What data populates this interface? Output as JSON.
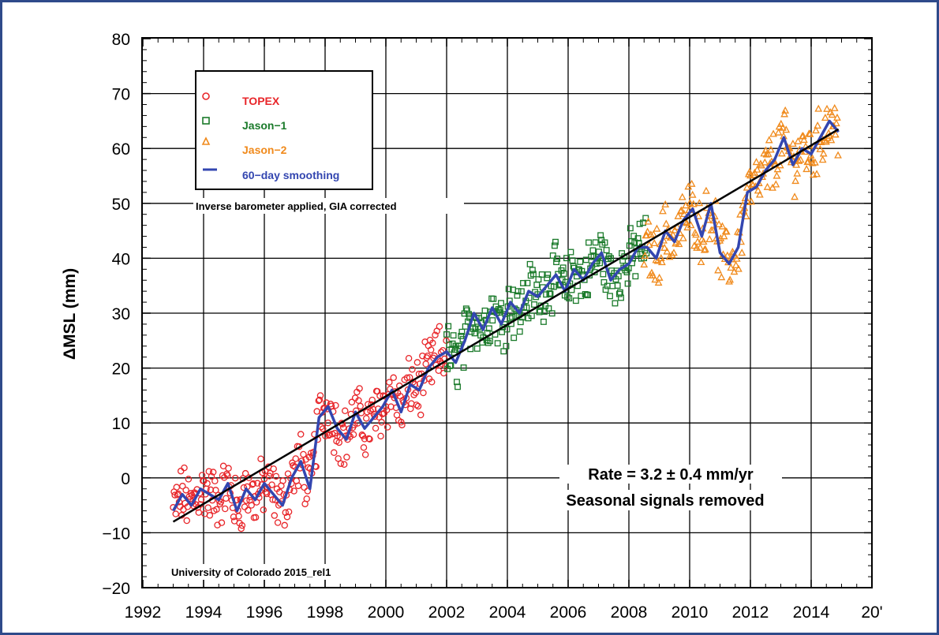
{
  "chart_data": {
    "type": "scatter",
    "ylabel": "ΔMSL (mm)",
    "xlabel": "",
    "xlim": [
      1992,
      2016
    ],
    "ylim": [
      -20,
      80
    ],
    "x_ticks": [
      "1992",
      "1994",
      "1996",
      "1998",
      "2000",
      "2002",
      "2004",
      "2006",
      "2008",
      "2010",
      "2012",
      "2014",
      "20'"
    ],
    "y_ticks": [
      "80",
      "70",
      "60",
      "50",
      "40",
      "30",
      "20",
      "10",
      "0",
      "−10",
      "−20"
    ],
    "grid": true,
    "legend_position": "top-left",
    "series": [
      {
        "name": "TOPEX",
        "marker": "circle",
        "color": "#e8262a",
        "x_range": [
          1993.0,
          2002.0
        ],
        "approx_trend": {
          "start": -7,
          "end": 24
        }
      },
      {
        "name": "Jason−1",
        "marker": "square",
        "color": "#1a7a2a",
        "x_range": [
          2002.0,
          2008.6
        ],
        "approx_trend": {
          "start": 24,
          "end": 43
        }
      },
      {
        "name": "Jason−2",
        "marker": "triangle",
        "color": "#f08a1c",
        "x_range": [
          2008.5,
          2014.9
        ],
        "approx_trend": {
          "start": 43,
          "end": 64
        }
      },
      {
        "name": "60−day smoothing",
        "marker": "line",
        "color": "#3346b0",
        "x": [
          1993.0,
          1993.3,
          1993.6,
          1993.9,
          1994.2,
          1994.5,
          1994.8,
          1995.1,
          1995.4,
          1995.7,
          1996.0,
          1996.3,
          1996.6,
          1996.9,
          1997.2,
          1997.5,
          1997.8,
          1998.1,
          1998.4,
          1998.7,
          1999.0,
          1999.3,
          1999.6,
          1999.9,
          2000.2,
          2000.5,
          2000.8,
          2001.1,
          2001.4,
          2001.7,
          2002.0,
          2002.3,
          2002.6,
          2002.9,
          2003.2,
          2003.5,
          2003.8,
          2004.1,
          2004.4,
          2004.7,
          2005.0,
          2005.3,
          2005.6,
          2005.9,
          2006.2,
          2006.5,
          2006.8,
          2007.1,
          2007.4,
          2007.7,
          2008.0,
          2008.3,
          2008.6,
          2008.9,
          2009.2,
          2009.5,
          2009.8,
          2010.1,
          2010.4,
          2010.7,
          2011.0,
          2011.3,
          2011.6,
          2011.9,
          2012.2,
          2012.5,
          2012.8,
          2013.1,
          2013.4,
          2013.7,
          2014.0,
          2014.3,
          2014.6,
          2014.9
        ],
        "y": [
          -6,
          -3,
          -5,
          -2,
          -3,
          -4,
          -1,
          -6,
          -2,
          -4,
          -1,
          -3,
          -5,
          0,
          3,
          -2,
          11,
          13,
          9,
          7,
          12,
          9,
          11,
          13,
          16,
          12,
          17,
          16,
          20,
          22,
          23,
          21,
          25,
          30,
          27,
          31,
          28,
          32,
          30,
          34,
          33,
          35,
          37,
          34,
          38,
          36,
          39,
          41,
          36,
          38,
          39,
          42,
          42,
          40,
          45,
          43,
          47,
          49,
          44,
          50,
          41,
          39,
          42,
          52,
          53,
          56,
          58,
          62,
          57,
          60,
          59,
          62,
          65,
          63
        ]
      },
      {
        "name": "",
        "marker": "line",
        "color": "#000000",
        "fit": {
          "x": [
            1993.0,
            2014.9
          ],
          "y": [
            -8,
            63.5
          ]
        }
      }
    ],
    "annotations": {
      "note_top": "Inverse barometer applied, GIA corrected",
      "note_bottom": "University of Colorado 2015_rel1",
      "rate_line1": "Rate = 3.2 ± 0.4 mm/yr",
      "rate_line2": "Seasonal signals removed"
    }
  }
}
